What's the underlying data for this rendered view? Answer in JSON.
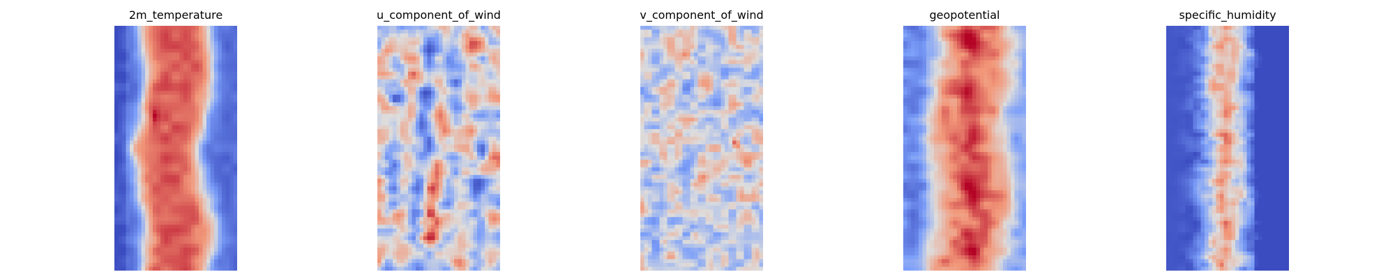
{
  "figure": {
    "colormap": "coolwarm",
    "panels": [
      {
        "title": "2m_temperature",
        "pattern": "temperature"
      },
      {
        "title": "u_component_of_wind",
        "pattern": "u_wind"
      },
      {
        "title": "v_component_of_wind",
        "pattern": "v_wind"
      },
      {
        "title": "geopotential",
        "pattern": "geopotential"
      },
      {
        "title": "specific_humidity",
        "pattern": "humidity"
      }
    ]
  }
}
